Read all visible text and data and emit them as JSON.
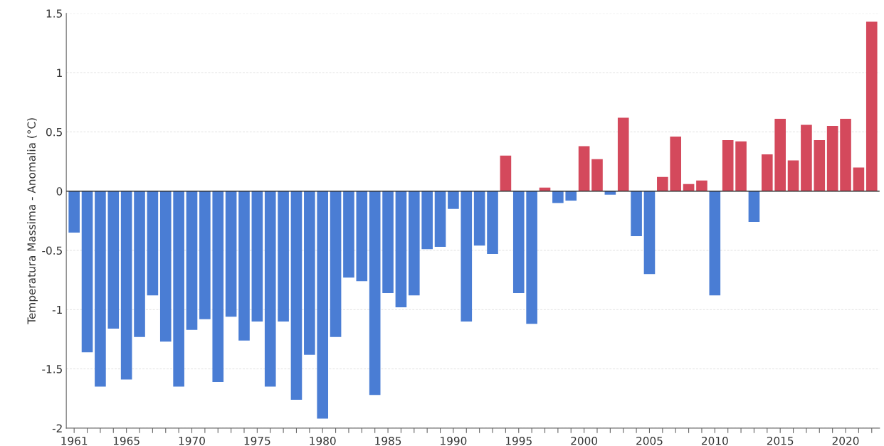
{
  "chart_data": {
    "type": "bar",
    "ylabel": "Temperatura Massima - Anomalia (°C)",
    "categories": [
      "1961",
      null,
      null,
      null,
      "1965",
      null,
      null,
      null,
      null,
      "1970",
      null,
      null,
      null,
      null,
      "1975",
      null,
      null,
      null,
      null,
      "1980",
      null,
      null,
      null,
      null,
      "1985",
      null,
      null,
      null,
      null,
      "1990",
      null,
      null,
      null,
      null,
      "1995",
      null,
      null,
      null,
      null,
      "2000",
      null,
      null,
      null,
      null,
      "2005",
      null,
      null,
      null,
      null,
      "2010",
      null,
      null,
      null,
      null,
      "2015",
      null,
      null,
      null,
      null,
      "2020",
      null,
      null
    ],
    "values": [
      -0.35,
      -1.36,
      -1.65,
      -1.16,
      -1.59,
      -1.23,
      -0.88,
      -1.27,
      -1.65,
      -1.17,
      -1.08,
      -1.61,
      -1.06,
      -1.26,
      -1.1,
      -1.65,
      -1.1,
      -1.76,
      -1.38,
      -1.92,
      -1.23,
      -0.73,
      -0.76,
      -1.72,
      -0.86,
      -0.98,
      -0.88,
      -0.49,
      -0.47,
      -0.15,
      -1.1,
      -0.46,
      -0.53,
      0.3,
      -0.86,
      -1.12,
      0.03,
      -0.1,
      -0.08,
      0.38,
      0.27,
      -0.03,
      0.62,
      -0.38,
      -0.7,
      0.12,
      0.46,
      0.06,
      0.09,
      -0.88,
      0.43,
      0.42,
      -0.26,
      0.31,
      0.61,
      0.26,
      0.56,
      0.43,
      0.55,
      0.61,
      0.2,
      1.43
    ],
    "colors": [
      "#4a7dd4",
      "#4a7dd4",
      "#4a7dd4",
      "#4a7dd4",
      "#4a7dd4",
      "#4a7dd4",
      "#4a7dd4",
      "#4a7dd4",
      "#4a7dd4",
      "#4a7dd4",
      "#4a7dd4",
      "#4a7dd4",
      "#4a7dd4",
      "#4a7dd4",
      "#4a7dd4",
      "#4a7dd4",
      "#4a7dd4",
      "#4a7dd4",
      "#4a7dd4",
      "#4a7dd4",
      "#4a7dd4",
      "#4a7dd4",
      "#4a7dd4",
      "#4a7dd4",
      "#4a7dd4",
      "#4a7dd4",
      "#4a7dd4",
      "#4a7dd4",
      "#4a7dd4",
      "#4a7dd4",
      "#4a7dd4",
      "#4a7dd4",
      "#4a7dd4",
      "#d4495c",
      "#4a7dd4",
      "#4a7dd4",
      "#d4495c",
      "#4a7dd4",
      "#4a7dd4",
      "#d4495c",
      "#d4495c",
      "#4a7dd4",
      "#d4495c",
      "#4a7dd4",
      "#4a7dd4",
      "#d4495c",
      "#d4495c",
      "#d4495c",
      "#d4495c",
      "#4a7dd4",
      "#d4495c",
      "#d4495c",
      "#4a7dd4",
      "#d4495c",
      "#d4495c",
      "#d4495c",
      "#d4495c",
      "#d4495c",
      "#d4495c",
      "#d4495c",
      "#d4495c",
      "#d4495c"
    ],
    "ylim": [
      -2,
      1.5
    ],
    "yticks": [
      -2,
      -1.5,
      -1,
      -0.5,
      0,
      0.5,
      1,
      1.5
    ],
    "ref_lines": [
      {
        "axis": "y",
        "value": 0,
        "color": "#333333"
      }
    ],
    "grid": "y"
  }
}
